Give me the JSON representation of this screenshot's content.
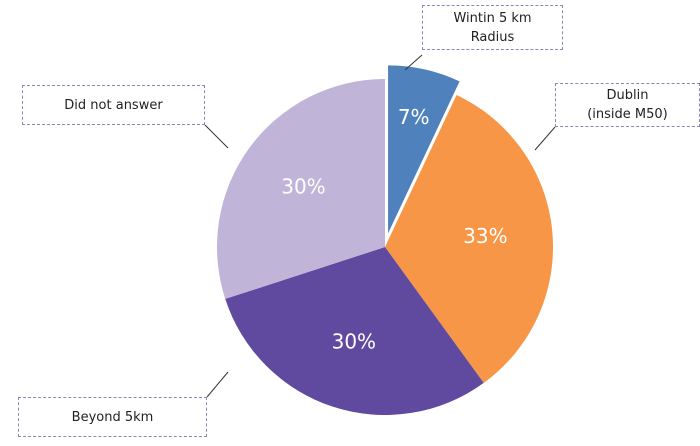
{
  "chart_data": {
    "type": "pie",
    "categories": [
      "Wintin 5 km\nRadius",
      "Dublin\n(inside M50)",
      "Beyond 5km",
      "Did not answer"
    ],
    "values": [
      7,
      33,
      30,
      30
    ],
    "value_labels": [
      "7%",
      "33%",
      "30%",
      "30%"
    ],
    "colors": [
      "#4f81bd",
      "#f79646",
      "#604a9f",
      "#c0b5d8"
    ]
  }
}
